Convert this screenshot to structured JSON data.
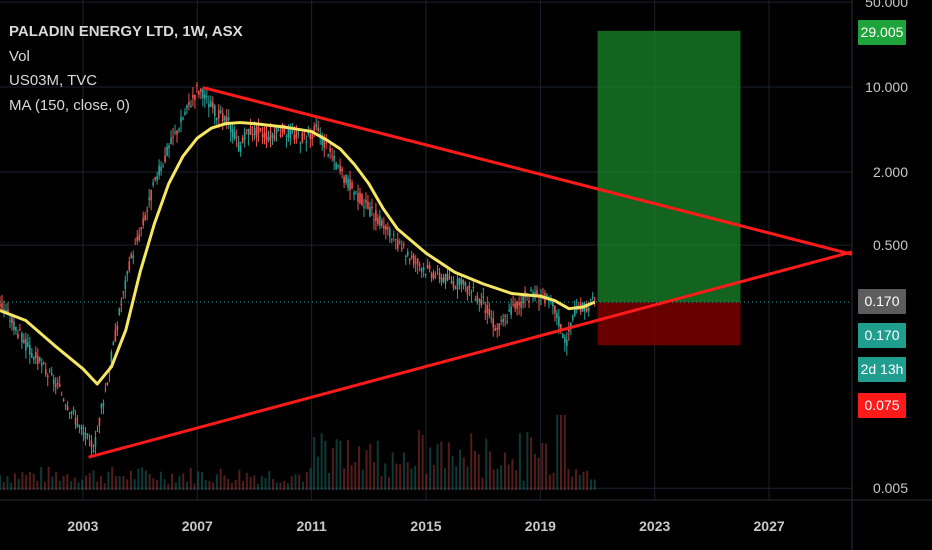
{
  "legend": {
    "title": "PALADIN ENERGY LTD, 1W, ASX",
    "vol": "Vol",
    "series2": "US03M, TVC",
    "ma": "MA (150, close, 0)"
  },
  "price_tags": {
    "target": "29.005",
    "last_gray": "0.170",
    "last_teal": "0.170",
    "countdown": "2d 13h",
    "stop": "0.075"
  },
  "colors": {
    "background": "#000000",
    "grid": "#1c2230",
    "trendline": "#ff1a1a",
    "ma": "#f5e663",
    "up": "#26a69a",
    "down": "#ef5350",
    "profit_zone": "#1a8a2a",
    "loss_zone": "#7a0000",
    "target_tag": "#1fa33b",
    "gray_tag": "#5d5d5d",
    "teal_tag": "#1f9e8f",
    "stop_tag": "#ff1a1a"
  },
  "chart_data": {
    "type": "line",
    "title": "PALADIN ENERGY LTD, 1W, ASX",
    "y_scale": "log",
    "ylim": [
      0.004,
      52
    ],
    "xlim": [
      2000.1,
      2029.9
    ],
    "y_ticks": [
      "50.000",
      "10.000",
      "2.000",
      "0.500",
      "0.005"
    ],
    "x_ticks": [
      "2003",
      "2007",
      "2011",
      "2015",
      "2019",
      "2023",
      "2027"
    ],
    "price_series": {
      "name": "PALADIN ENERGY LTD",
      "x": [
        2000.1,
        2000.6,
        2001.1,
        2001.6,
        2002.1,
        2002.6,
        2003.0,
        2003.4,
        2003.9,
        2004.3,
        2004.7,
        2005.1,
        2005.5,
        2005.9,
        2006.3,
        2006.7,
        2007.0,
        2007.3,
        2007.7,
        2008.1,
        2008.5,
        2008.8,
        2009.2,
        2009.6,
        2010.0,
        2010.4,
        2010.8,
        2011.2,
        2011.6,
        2012.0,
        2012.5,
        2013.0,
        2013.5,
        2014.0,
        2014.5,
        2015.0,
        2015.5,
        2016.0,
        2016.5,
        2017.0,
        2017.5,
        2018.0,
        2018.5,
        2019.0,
        2019.5,
        2019.9,
        2020.2,
        2020.6,
        2020.9
      ],
      "values": [
        0.17,
        0.11,
        0.07,
        0.05,
        0.035,
        0.022,
        0.014,
        0.011,
        0.045,
        0.15,
        0.4,
        0.75,
        1.6,
        2.8,
        4.5,
        7.0,
        9.8,
        8.0,
        6.0,
        5.0,
        3.2,
        4.5,
        4.2,
        4.0,
        4.5,
        4.0,
        3.9,
        4.5,
        3.0,
        2.0,
        1.4,
        1.0,
        0.75,
        0.5,
        0.4,
        0.32,
        0.28,
        0.25,
        0.22,
        0.17,
        0.1,
        0.15,
        0.19,
        0.2,
        0.15,
        0.08,
        0.14,
        0.16,
        0.17
      ]
    },
    "moving_average": {
      "name": "MA (150, close, 0)",
      "x": [
        2000.1,
        2001.0,
        2002.0,
        2003.0,
        2003.5,
        2004.0,
        2004.5,
        2005.0,
        2005.5,
        2006.0,
        2006.5,
        2007.0,
        2007.5,
        2008.0,
        2008.5,
        2009.0,
        2009.5,
        2010.0,
        2010.5,
        2011.0,
        2011.5,
        2012.0,
        2012.5,
        2013.0,
        2013.5,
        2014.0,
        2015.0,
        2016.0,
        2017.0,
        2018.0,
        2019.0,
        2019.5,
        2020.0,
        2020.5,
        2020.9
      ],
      "values": [
        0.145,
        0.12,
        0.075,
        0.048,
        0.036,
        0.05,
        0.1,
        0.3,
        0.75,
        1.6,
        2.7,
        3.8,
        4.6,
        5.0,
        5.1,
        5.0,
        4.85,
        4.7,
        4.5,
        4.3,
        3.7,
        3.1,
        2.3,
        1.6,
        1.0,
        0.68,
        0.43,
        0.3,
        0.24,
        0.2,
        0.19,
        0.175,
        0.15,
        0.155,
        0.17
      ]
    },
    "trendlines": [
      {
        "x1": 2007.2,
        "y1": 9.9,
        "x2": 2029.9,
        "y2": 0.42
      },
      {
        "x1": 2003.2,
        "y1": 0.009,
        "x2": 2029.9,
        "y2": 0.44
      }
    ],
    "position": {
      "x_start": 2021.0,
      "x_end": 2026.0,
      "entry": 0.17,
      "target": 29.005,
      "stop": 0.075
    },
    "last_price": 0.17,
    "volume_bars": 160
  }
}
